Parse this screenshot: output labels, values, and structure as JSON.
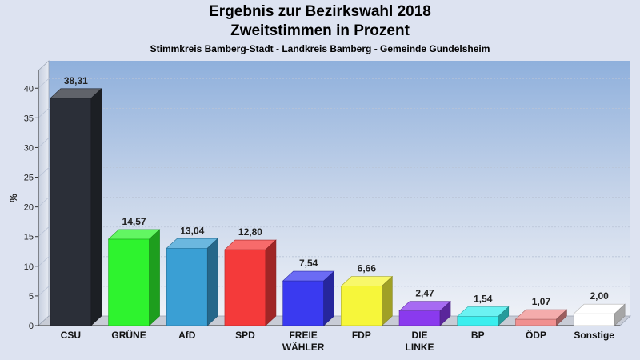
{
  "header": {
    "title": "Ergebnis zur Bezirkswahl 2018",
    "title2": "Zweitstimmen in Prozent",
    "subtitle": "Stimmkreis Bamberg-Stadt - Landkreis Bamberg - Gemeinde Gundelsheim"
  },
  "chart_data": {
    "type": "bar",
    "title": "Ergebnis zur Bezirkswahl 2018",
    "subtitle": "Zweitstimmen in Prozent",
    "caption": "Stimmkreis Bamberg-Stadt - Landkreis Bamberg - Gemeinde Gundelsheim",
    "ylabel": "%",
    "ylim": [
      0,
      43
    ],
    "yticks": [
      0,
      5,
      10,
      15,
      20,
      25,
      30,
      35,
      40
    ],
    "grid": true,
    "categories": [
      "CSU",
      "GRÜNE",
      "AfD",
      "SPD",
      "FREIE\nWÄHLER",
      "FDP",
      "DIE\nLINKE",
      "BP",
      "ÖDP",
      "Sonstige"
    ],
    "values": [
      38.31,
      14.57,
      13.04,
      12.8,
      7.54,
      6.66,
      2.47,
      1.54,
      1.07,
      2.0
    ],
    "value_labels": [
      "38,31",
      "14,57",
      "13,04",
      "12,80",
      "7,54",
      "6,66",
      "2,47",
      "1,54",
      "1,07",
      "2,00"
    ],
    "colors": [
      "#2b2f38",
      "#2ef32e",
      "#3a9fd4",
      "#f43a3a",
      "#3a3af0",
      "#f6f63a",
      "#8a3aee",
      "#3aeeee",
      "#f09090",
      "#ffffff"
    ]
  }
}
